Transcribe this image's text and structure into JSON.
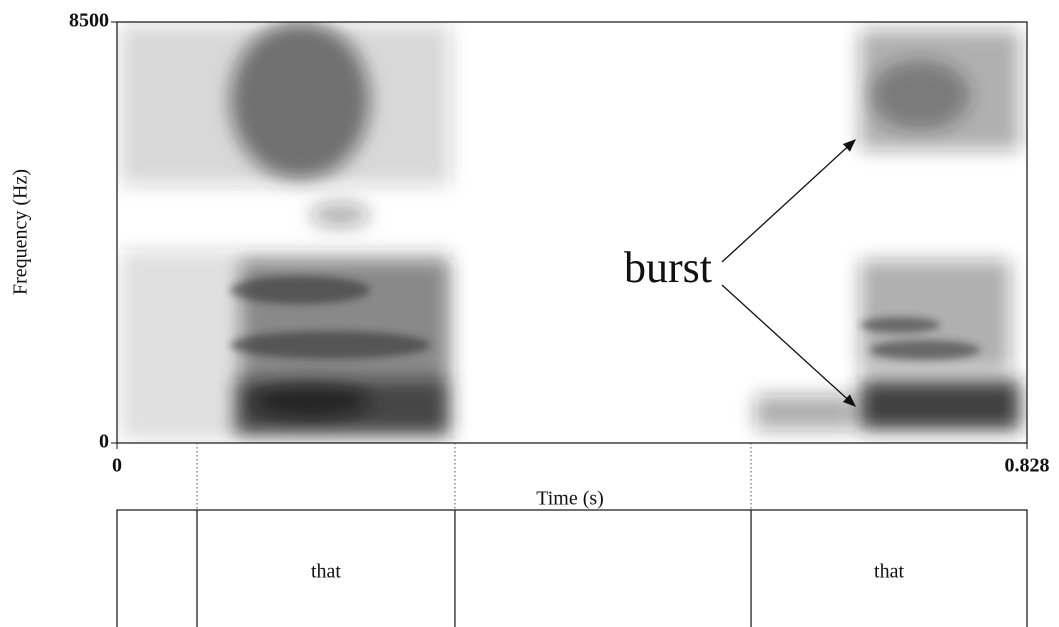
{
  "chart_data": {
    "type": "spectrogram",
    "xlabel": "Time (s)",
    "ylabel": "Frequency (Hz)",
    "xlim": [
      0,
      0.828
    ],
    "ylim": [
      0,
      8500
    ],
    "xticks": [
      0,
      0.828
    ],
    "yticks": [
      0,
      8500
    ],
    "annotation": "burst",
    "boundaries": [
      0.0728,
      0.3075,
      0.5769
    ],
    "interval_labels": [
      null,
      "that",
      null,
      "that"
    ]
  }
}
